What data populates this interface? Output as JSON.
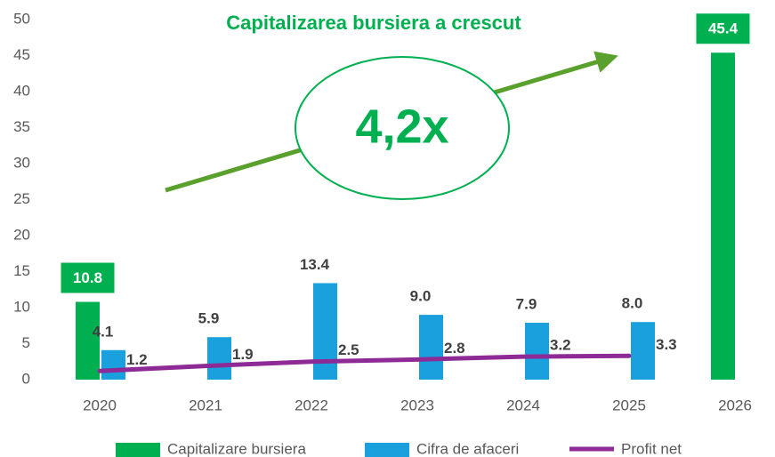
{
  "chart_data": {
    "type": "bar",
    "title": "Capitalizarea bursiera a crescut",
    "annotation": "4,2x",
    "categories": [
      "2020",
      "2021",
      "2022",
      "2023",
      "2024",
      "2025",
      "2026"
    ],
    "series": [
      {
        "name": "Capitalizare bursiera",
        "color": "#00b050",
        "type": "bar",
        "values": [
          10.8,
          null,
          null,
          null,
          null,
          null,
          45.4
        ],
        "value_labels": [
          "10.8",
          null,
          null,
          null,
          null,
          null,
          "45.4"
        ]
      },
      {
        "name": "Cifra de afaceri",
        "color": "#1aa0dc",
        "type": "bar",
        "values": [
          4.1,
          5.9,
          13.4,
          9.0,
          7.9,
          8.0,
          null
        ],
        "value_labels": [
          "4.1",
          "5.9",
          "13.4",
          "9.0",
          "7.9",
          "8.0",
          null
        ]
      },
      {
        "name": "Profit net",
        "color": "#8e2a96",
        "type": "line",
        "values": [
          1.2,
          1.9,
          2.5,
          2.8,
          3.2,
          3.3,
          null
        ],
        "value_labels": [
          "1.2",
          "1.9",
          "2.5",
          "2.8",
          "3.2",
          "3.3",
          null
        ]
      }
    ],
    "ylim": [
      0,
      50
    ],
    "yticks": [
      0,
      5,
      10,
      15,
      20,
      25,
      30,
      35,
      40,
      45,
      50
    ],
    "grid": false
  }
}
